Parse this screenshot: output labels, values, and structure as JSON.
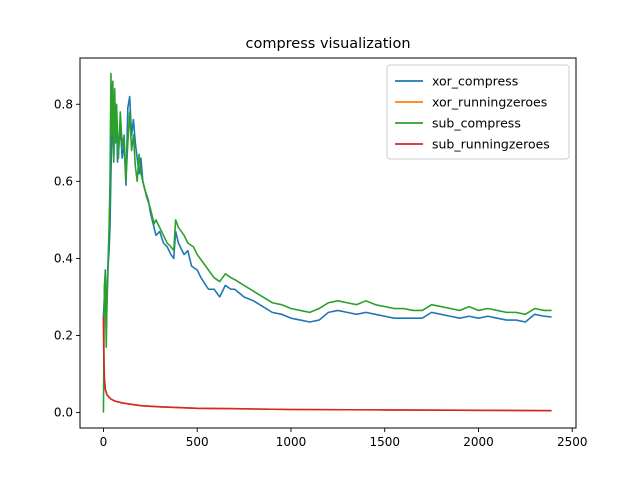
{
  "chart_data": {
    "type": "line",
    "title": "compress visualization",
    "xlabel": "",
    "ylabel": "",
    "xlim": [
      -125,
      2520
    ],
    "ylim": [
      -0.04,
      0.92
    ],
    "xticks": [
      0,
      500,
      1000,
      1500,
      2000,
      2500
    ],
    "yticks": [
      0.0,
      0.2,
      0.4,
      0.6,
      0.8
    ],
    "grid": false,
    "legend_position": "top-right",
    "series": [
      {
        "name": "xor_compress",
        "color": "#1f77b4",
        "points": [
          [
            0,
            0.25
          ],
          [
            5,
            0.3
          ],
          [
            10,
            0.37
          ],
          [
            15,
            0.22
          ],
          [
            20,
            0.3
          ],
          [
            25,
            0.38
          ],
          [
            30,
            0.42
          ],
          [
            35,
            0.48
          ],
          [
            40,
            0.62
          ],
          [
            45,
            0.72
          ],
          [
            50,
            0.75
          ],
          [
            55,
            0.66
          ],
          [
            60,
            0.75
          ],
          [
            65,
            0.7
          ],
          [
            70,
            0.77
          ],
          [
            75,
            0.65
          ],
          [
            80,
            0.68
          ],
          [
            90,
            0.74
          ],
          [
            100,
            0.66
          ],
          [
            110,
            0.7
          ],
          [
            120,
            0.59
          ],
          [
            130,
            0.79
          ],
          [
            140,
            0.82
          ],
          [
            150,
            0.72
          ],
          [
            160,
            0.76
          ],
          [
            170,
            0.7
          ],
          [
            180,
            0.66
          ],
          [
            190,
            0.62
          ],
          [
            200,
            0.66
          ],
          [
            210,
            0.6
          ],
          [
            220,
            0.58
          ],
          [
            240,
            0.55
          ],
          [
            250,
            0.52
          ],
          [
            270,
            0.48
          ],
          [
            280,
            0.46
          ],
          [
            300,
            0.47
          ],
          [
            320,
            0.44
          ],
          [
            340,
            0.43
          ],
          [
            360,
            0.41
          ],
          [
            375,
            0.4
          ],
          [
            385,
            0.47
          ],
          [
            400,
            0.44
          ],
          [
            430,
            0.41
          ],
          [
            450,
            0.42
          ],
          [
            470,
            0.38
          ],
          [
            500,
            0.37
          ],
          [
            520,
            0.35
          ],
          [
            560,
            0.32
          ],
          [
            590,
            0.32
          ],
          [
            620,
            0.3
          ],
          [
            650,
            0.33
          ],
          [
            680,
            0.32
          ],
          [
            700,
            0.32
          ],
          [
            750,
            0.3
          ],
          [
            800,
            0.29
          ],
          [
            850,
            0.275
          ],
          [
            900,
            0.26
          ],
          [
            950,
            0.255
          ],
          [
            1000,
            0.245
          ],
          [
            1050,
            0.24
          ],
          [
            1100,
            0.235
          ],
          [
            1150,
            0.24
          ],
          [
            1200,
            0.26
          ],
          [
            1250,
            0.265
          ],
          [
            1300,
            0.26
          ],
          [
            1350,
            0.255
          ],
          [
            1400,
            0.26
          ],
          [
            1450,
            0.255
          ],
          [
            1500,
            0.25
          ],
          [
            1550,
            0.245
          ],
          [
            1600,
            0.245
          ],
          [
            1650,
            0.245
          ],
          [
            1700,
            0.245
          ],
          [
            1750,
            0.26
          ],
          [
            1800,
            0.255
          ],
          [
            1850,
            0.25
          ],
          [
            1900,
            0.245
          ],
          [
            1950,
            0.25
          ],
          [
            2000,
            0.245
          ],
          [
            2050,
            0.25
          ],
          [
            2100,
            0.245
          ],
          [
            2150,
            0.24
          ],
          [
            2200,
            0.24
          ],
          [
            2250,
            0.235
          ],
          [
            2300,
            0.255
          ],
          [
            2350,
            0.25
          ],
          [
            2390,
            0.248
          ]
        ]
      },
      {
        "name": "xor_runningzeroes",
        "color": "#ff7f0e",
        "points": [
          [
            0,
            0.25
          ],
          [
            2,
            0.15
          ],
          [
            5,
            0.09
          ],
          [
            10,
            0.06
          ],
          [
            20,
            0.045
          ],
          [
            40,
            0.035
          ],
          [
            60,
            0.03
          ],
          [
            100,
            0.025
          ],
          [
            200,
            0.018
          ],
          [
            300,
            0.015
          ],
          [
            400,
            0.013
          ],
          [
            500,
            0.011
          ],
          [
            700,
            0.01
          ],
          [
            1000,
            0.008
          ],
          [
            1500,
            0.007
          ],
          [
            2000,
            0.006
          ],
          [
            2390,
            0.005
          ]
        ]
      },
      {
        "name": "sub_compress",
        "color": "#2ca02c",
        "points": [
          [
            0,
            0.0
          ],
          [
            5,
            0.33
          ],
          [
            10,
            0.36
          ],
          [
            15,
            0.17
          ],
          [
            20,
            0.32
          ],
          [
            25,
            0.4
          ],
          [
            30,
            0.48
          ],
          [
            35,
            0.6
          ],
          [
            40,
            0.88
          ],
          [
            45,
            0.72
          ],
          [
            50,
            0.86
          ],
          [
            55,
            0.65
          ],
          [
            60,
            0.84
          ],
          [
            65,
            0.7
          ],
          [
            70,
            0.8
          ],
          [
            80,
            0.66
          ],
          [
            90,
            0.78
          ],
          [
            100,
            0.69
          ],
          [
            110,
            0.72
          ],
          [
            120,
            0.6
          ],
          [
            130,
            0.7
          ],
          [
            140,
            0.78
          ],
          [
            150,
            0.68
          ],
          [
            160,
            0.72
          ],
          [
            170,
            0.64
          ],
          [
            180,
            0.6
          ],
          [
            190,
            0.67
          ],
          [
            200,
            0.62
          ],
          [
            210,
            0.6
          ],
          [
            230,
            0.56
          ],
          [
            250,
            0.53
          ],
          [
            270,
            0.49
          ],
          [
            280,
            0.5
          ],
          [
            300,
            0.48
          ],
          [
            320,
            0.46
          ],
          [
            340,
            0.44
          ],
          [
            360,
            0.43
          ],
          [
            375,
            0.42
          ],
          [
            385,
            0.5
          ],
          [
            400,
            0.48
          ],
          [
            430,
            0.46
          ],
          [
            450,
            0.44
          ],
          [
            480,
            0.43
          ],
          [
            500,
            0.41
          ],
          [
            530,
            0.39
          ],
          [
            560,
            0.37
          ],
          [
            590,
            0.35
          ],
          [
            620,
            0.34
          ],
          [
            650,
            0.36
          ],
          [
            680,
            0.35
          ],
          [
            700,
            0.345
          ],
          [
            750,
            0.33
          ],
          [
            800,
            0.315
          ],
          [
            850,
            0.3
          ],
          [
            900,
            0.285
          ],
          [
            950,
            0.28
          ],
          [
            1000,
            0.27
          ],
          [
            1050,
            0.265
          ],
          [
            1100,
            0.26
          ],
          [
            1150,
            0.27
          ],
          [
            1200,
            0.285
          ],
          [
            1250,
            0.29
          ],
          [
            1300,
            0.285
          ],
          [
            1350,
            0.28
          ],
          [
            1400,
            0.29
          ],
          [
            1450,
            0.28
          ],
          [
            1500,
            0.275
          ],
          [
            1550,
            0.27
          ],
          [
            1600,
            0.27
          ],
          [
            1650,
            0.265
          ],
          [
            1700,
            0.265
          ],
          [
            1750,
            0.28
          ],
          [
            1800,
            0.275
          ],
          [
            1850,
            0.27
          ],
          [
            1900,
            0.265
          ],
          [
            1950,
            0.275
          ],
          [
            2000,
            0.265
          ],
          [
            2050,
            0.27
          ],
          [
            2100,
            0.265
          ],
          [
            2150,
            0.26
          ],
          [
            2200,
            0.26
          ],
          [
            2250,
            0.255
          ],
          [
            2300,
            0.27
          ],
          [
            2350,
            0.265
          ],
          [
            2390,
            0.265
          ]
        ]
      },
      {
        "name": "sub_runningzeroes",
        "color": "#d62728",
        "points": [
          [
            0,
            0.25
          ],
          [
            2,
            0.15
          ],
          [
            5,
            0.09
          ],
          [
            10,
            0.06
          ],
          [
            20,
            0.045
          ],
          [
            40,
            0.035
          ],
          [
            60,
            0.03
          ],
          [
            100,
            0.025
          ],
          [
            200,
            0.018
          ],
          [
            300,
            0.015
          ],
          [
            400,
            0.013
          ],
          [
            500,
            0.011
          ],
          [
            700,
            0.01
          ],
          [
            1000,
            0.008
          ],
          [
            1500,
            0.007
          ],
          [
            2000,
            0.006
          ],
          [
            2390,
            0.005
          ]
        ]
      }
    ]
  }
}
